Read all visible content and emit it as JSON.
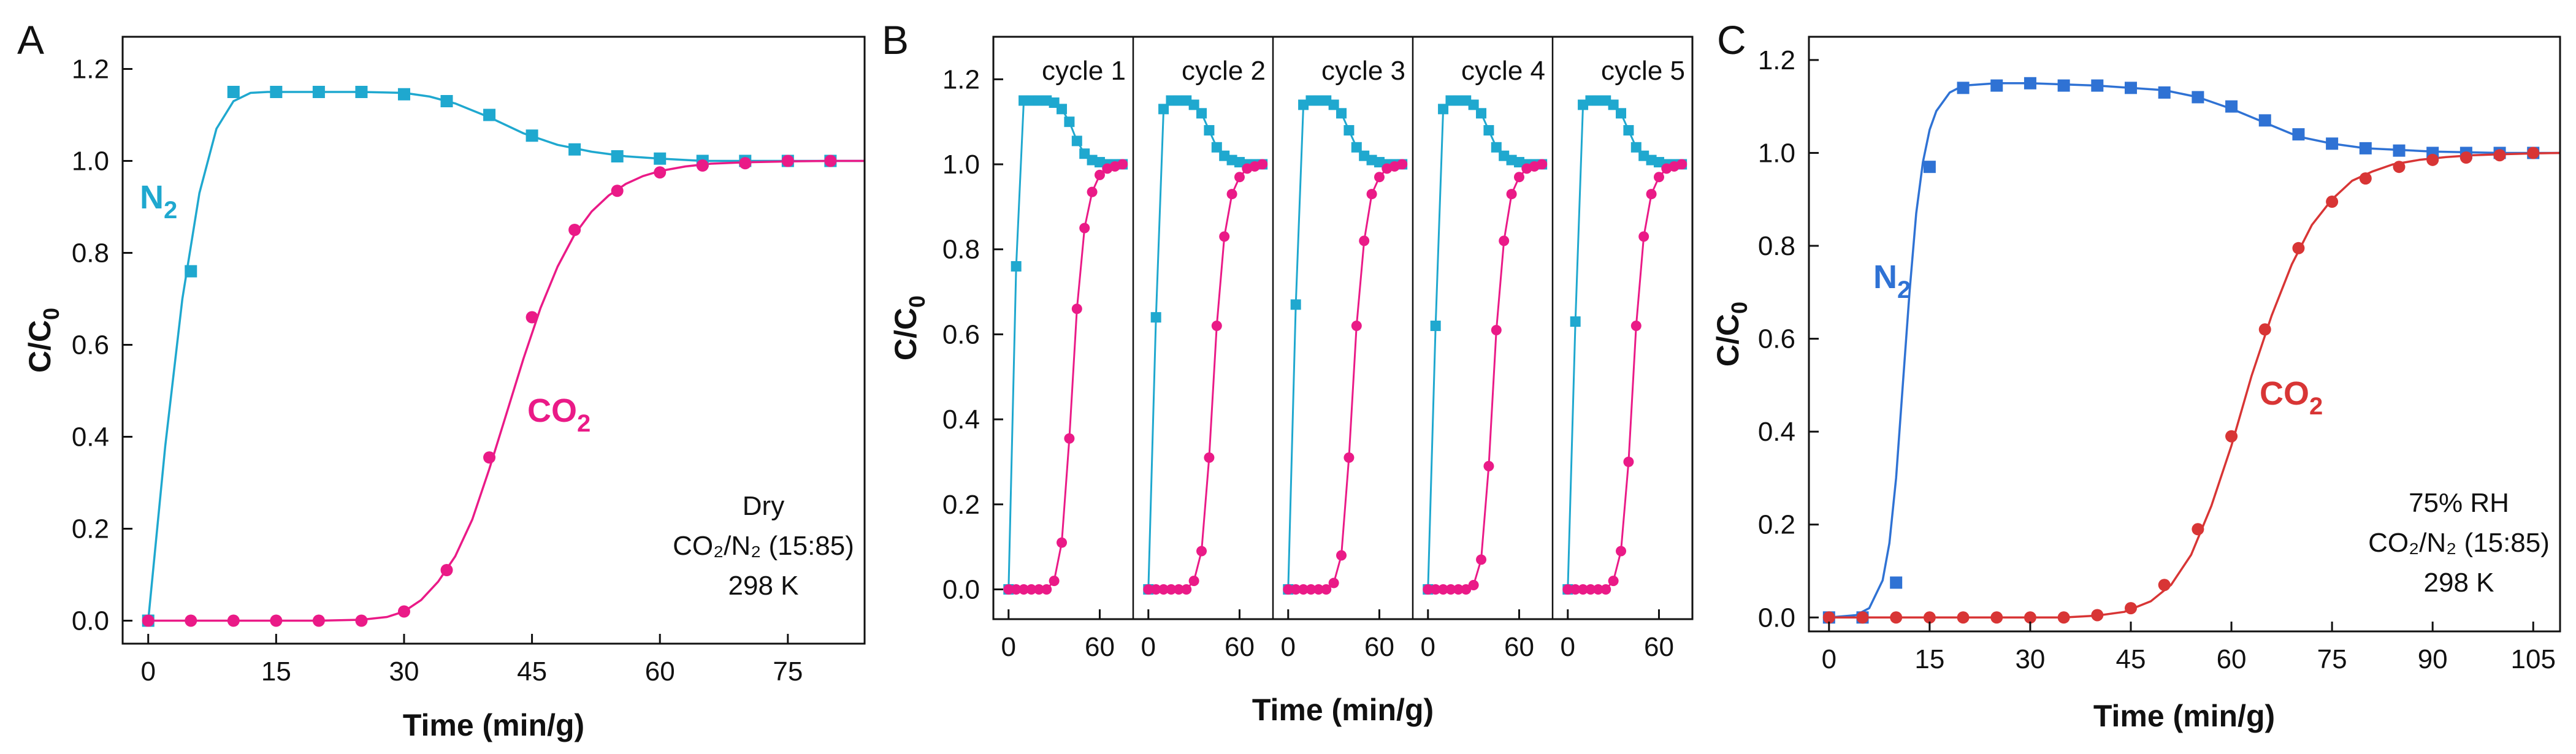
{
  "figure": {
    "colors": {
      "n2_A": "#1fa8cf",
      "co2_A": "#ea1a87",
      "n2_C": "#2f72d4",
      "co2_C": "#d83535"
    }
  },
  "chart_data": [
    {
      "id": "A",
      "type": "scatter",
      "panel_label": "A",
      "xlabel": "Time (min/g)",
      "ylabel_main": "C/C",
      "ylabel_sub": "0",
      "xlim": [
        -3,
        84
      ],
      "ylim": [
        -0.05,
        1.27
      ],
      "xticks": [
        0,
        15,
        30,
        45,
        60,
        75
      ],
      "yticks": [
        0.0,
        0.2,
        0.4,
        0.6,
        0.8,
        1.0,
        1.2
      ],
      "ytick_labels": [
        "0.0",
        "0.2",
        "0.4",
        "0.6",
        "0.8",
        "1.0",
        "1.2"
      ],
      "annotation": [
        "Dry",
        "CO₂/N₂ (15:85)",
        "298 K"
      ],
      "series": [
        {
          "name": "N₂",
          "name_main": "N",
          "name_sub": "2",
          "color": "#1fa8cf",
          "marker": "square",
          "x": [
            0,
            5,
            10,
            15,
            20,
            25,
            30,
            35,
            40,
            45,
            50,
            55,
            60,
            65,
            70,
            75,
            80
          ],
          "y": [
            0.0,
            0.76,
            1.15,
            1.15,
            1.15,
            1.15,
            1.145,
            1.13,
            1.1,
            1.055,
            1.025,
            1.01,
            1.005,
            1.0,
            1.0,
            1.0,
            1.0
          ],
          "fit_x": [
            0,
            2,
            4,
            6,
            8,
            10,
            12,
            14,
            16,
            20,
            25,
            30,
            33,
            36,
            40,
            44,
            48,
            52,
            56,
            60,
            65,
            70,
            75,
            80,
            84
          ],
          "fit_y": [
            0.0,
            0.38,
            0.7,
            0.93,
            1.07,
            1.13,
            1.148,
            1.15,
            1.15,
            1.15,
            1.15,
            1.148,
            1.14,
            1.125,
            1.095,
            1.06,
            1.035,
            1.02,
            1.01,
            1.005,
            1.0,
            1.0,
            1.0,
            1.0,
            1.0
          ]
        },
        {
          "name": "CO₂",
          "name_main": "CO",
          "name_sub": "2",
          "color": "#ea1a87",
          "marker": "circle",
          "x": [
            0,
            5,
            10,
            15,
            20,
            25,
            30,
            35,
            40,
            45,
            50,
            55,
            60,
            65,
            70,
            75,
            80
          ],
          "y": [
            0.0,
            0.0,
            0.0,
            0.0,
            0.0,
            0.0,
            0.02,
            0.11,
            0.355,
            0.66,
            0.85,
            0.935,
            0.975,
            0.99,
            0.995,
            1.0,
            1.0
          ],
          "fit_x": [
            0,
            10,
            20,
            25,
            28,
            30,
            32,
            34,
            36,
            38,
            40,
            42,
            44,
            46,
            48,
            50,
            52,
            54,
            56,
            58,
            60,
            63,
            66,
            70,
            75,
            80,
            84
          ],
          "fit_y": [
            0.0,
            0.0,
            0.0,
            0.002,
            0.008,
            0.02,
            0.045,
            0.085,
            0.14,
            0.22,
            0.33,
            0.45,
            0.57,
            0.68,
            0.77,
            0.84,
            0.89,
            0.925,
            0.95,
            0.967,
            0.978,
            0.988,
            0.994,
            0.997,
            0.999,
            1.0,
            1.0
          ]
        }
      ]
    },
    {
      "id": "B",
      "type": "scatter",
      "panel_label": "B",
      "xlabel": "Time (min/g)",
      "ylabel_main": "C/C",
      "ylabel_sub": "0",
      "xlim": [
        -10,
        82
      ],
      "ylim": [
        -0.07,
        1.3
      ],
      "xticks": [
        0,
        60
      ],
      "yticks": [
        0.0,
        0.2,
        0.4,
        0.6,
        0.8,
        1.0,
        1.2
      ],
      "ytick_labels": [
        "0.0",
        "0.2",
        "0.4",
        "0.6",
        "0.8",
        "1.0",
        "1.2"
      ],
      "cycles": [
        {
          "label": "cycle 1",
          "n2": {
            "x": [
              0,
              5,
              10,
              15,
              20,
              25,
              30,
              35,
              40,
              45,
              50,
              55,
              60,
              65,
              70,
              75
            ],
            "y": [
              0.0,
              0.76,
              1.15,
              1.15,
              1.15,
              1.15,
              1.145,
              1.13,
              1.1,
              1.055,
              1.025,
              1.01,
              1.005,
              1.0,
              1.0,
              1.0
            ]
          },
          "co2": {
            "x": [
              0,
              5,
              10,
              15,
              20,
              25,
              30,
              35,
              40,
              45,
              50,
              55,
              60,
              65,
              70,
              75
            ],
            "y": [
              0.0,
              0.0,
              0.0,
              0.0,
              0.0,
              0.0,
              0.02,
              0.11,
              0.355,
              0.66,
              0.85,
              0.935,
              0.975,
              0.99,
              0.995,
              1.0
            ]
          }
        },
        {
          "label": "cycle 2",
          "n2": {
            "x": [
              0,
              5,
              10,
              15,
              20,
              25,
              30,
              35,
              40,
              45,
              50,
              55,
              60,
              65,
              70,
              75
            ],
            "y": [
              0.0,
              0.64,
              1.13,
              1.15,
              1.15,
              1.15,
              1.14,
              1.12,
              1.08,
              1.04,
              1.02,
              1.01,
              1.005,
              1.0,
              1.0,
              1.0
            ]
          },
          "co2": {
            "x": [
              0,
              5,
              10,
              15,
              20,
              25,
              30,
              35,
              40,
              45,
              50,
              55,
              60,
              65,
              70,
              75
            ],
            "y": [
              0.0,
              0.0,
              0.0,
              0.0,
              0.0,
              0.0,
              0.02,
              0.09,
              0.31,
              0.62,
              0.83,
              0.93,
              0.97,
              0.99,
              0.995,
              1.0
            ]
          }
        },
        {
          "label": "cycle 3",
          "n2": {
            "x": [
              0,
              5,
              10,
              15,
              20,
              25,
              30,
              35,
              40,
              45,
              50,
              55,
              60,
              65,
              70,
              75
            ],
            "y": [
              0.0,
              0.67,
              1.14,
              1.15,
              1.15,
              1.15,
              1.14,
              1.12,
              1.08,
              1.04,
              1.02,
              1.01,
              1.005,
              1.0,
              1.0,
              1.0
            ]
          },
          "co2": {
            "x": [
              0,
              5,
              10,
              15,
              20,
              25,
              30,
              35,
              40,
              45,
              50,
              55,
              60,
              65,
              70,
              75
            ],
            "y": [
              0.0,
              0.0,
              0.0,
              0.0,
              0.0,
              0.0,
              0.015,
              0.08,
              0.31,
              0.62,
              0.82,
              0.93,
              0.97,
              0.99,
              0.995,
              1.0
            ]
          }
        },
        {
          "label": "cycle 4",
          "n2": {
            "x": [
              0,
              5,
              10,
              15,
              20,
              25,
              30,
              35,
              40,
              45,
              50,
              55,
              60,
              65,
              70,
              75
            ],
            "y": [
              0.0,
              0.62,
              1.13,
              1.15,
              1.15,
              1.15,
              1.14,
              1.12,
              1.08,
              1.04,
              1.02,
              1.01,
              1.005,
              1.0,
              1.0,
              1.0
            ]
          },
          "co2": {
            "x": [
              0,
              5,
              10,
              15,
              20,
              25,
              30,
              35,
              40,
              45,
              50,
              55,
              60,
              65,
              70,
              75
            ],
            "y": [
              0.0,
              0.0,
              0.0,
              0.0,
              0.0,
              0.0,
              0.01,
              0.07,
              0.29,
              0.61,
              0.82,
              0.93,
              0.97,
              0.99,
              0.995,
              1.0
            ]
          }
        },
        {
          "label": "cycle 5",
          "n2": {
            "x": [
              0,
              5,
              10,
              15,
              20,
              25,
              30,
              35,
              40,
              45,
              50,
              55,
              60,
              65,
              70,
              75
            ],
            "y": [
              0.0,
              0.63,
              1.14,
              1.15,
              1.15,
              1.15,
              1.14,
              1.12,
              1.08,
              1.04,
              1.02,
              1.01,
              1.005,
              1.0,
              1.0,
              1.0
            ]
          },
          "co2": {
            "x": [
              0,
              5,
              10,
              15,
              20,
              25,
              30,
              35,
              40,
              45,
              50,
              55,
              60,
              65,
              70,
              75
            ],
            "y": [
              0.0,
              0.0,
              0.0,
              0.0,
              0.0,
              0.0,
              0.02,
              0.09,
              0.3,
              0.62,
              0.83,
              0.93,
              0.97,
              0.99,
              0.995,
              1.0
            ]
          }
        }
      ]
    },
    {
      "id": "C",
      "type": "scatter",
      "panel_label": "C",
      "xlabel": "Time (min/g)",
      "ylabel_main": "C/C",
      "ylabel_sub": "0",
      "xlim": [
        -3,
        109
      ],
      "ylim": [
        -0.03,
        1.25
      ],
      "xticks": [
        0,
        15,
        30,
        45,
        60,
        75,
        90,
        105
      ],
      "yticks": [
        0.0,
        0.2,
        0.4,
        0.6,
        0.8,
        1.0,
        1.2
      ],
      "ytick_labels": [
        "0.0",
        "0.2",
        "0.4",
        "0.6",
        "0.8",
        "1.0",
        "1.2"
      ],
      "annotation": [
        "75% RH",
        "CO₂/N₂ (15:85)",
        "298 K"
      ],
      "series": [
        {
          "name": "N₂",
          "name_main": "N",
          "name_sub": "2",
          "color": "#2f72d4",
          "marker": "square",
          "x": [
            0,
            5,
            10,
            15,
            20,
            25,
            30,
            35,
            40,
            45,
            50,
            55,
            60,
            65,
            70,
            75,
            80,
            85,
            90,
            95,
            100,
            105
          ],
          "y": [
            0.0,
            0.0,
            0.075,
            0.97,
            1.14,
            1.145,
            1.15,
            1.145,
            1.145,
            1.14,
            1.13,
            1.12,
            1.1,
            1.07,
            1.04,
            1.02,
            1.01,
            1.005,
            1.0,
            1.0,
            1.0,
            1.0
          ],
          "fit_x": [
            0,
            4,
            6,
            8,
            9,
            10,
            11,
            12,
            13,
            14,
            15,
            16,
            18,
            20,
            25,
            30,
            40,
            50,
            55,
            60,
            65,
            70,
            75,
            80,
            90,
            100,
            109
          ],
          "fit_y": [
            0.0,
            0.005,
            0.02,
            0.08,
            0.16,
            0.3,
            0.5,
            0.7,
            0.87,
            0.98,
            1.05,
            1.09,
            1.13,
            1.145,
            1.15,
            1.15,
            1.145,
            1.135,
            1.12,
            1.095,
            1.065,
            1.035,
            1.02,
            1.01,
            1.003,
            1.0,
            1.0
          ]
        },
        {
          "name": "CO₂",
          "name_main": "CO",
          "name_sub": "2",
          "color": "#d83535",
          "marker": "circle",
          "x": [
            0,
            5,
            10,
            15,
            20,
            25,
            30,
            35,
            40,
            45,
            50,
            55,
            60,
            65,
            70,
            75,
            80,
            85,
            90,
            95,
            100,
            105
          ],
          "y": [
            0.0,
            0.0,
            0.0,
            0.0,
            0.0,
            0.0,
            0.0,
            0.0,
            0.005,
            0.02,
            0.07,
            0.19,
            0.39,
            0.62,
            0.795,
            0.895,
            0.945,
            0.97,
            0.985,
            0.99,
            0.995,
            1.0
          ],
          "fit_x": [
            0,
            20,
            35,
            40,
            44,
            48,
            51,
            54,
            57,
            60,
            63,
            66,
            69,
            72,
            75,
            78,
            81,
            84,
            88,
            92,
            96,
            100,
            105,
            109
          ],
          "fit_y": [
            0.0,
            0.0,
            0.0,
            0.004,
            0.012,
            0.035,
            0.07,
            0.135,
            0.24,
            0.37,
            0.52,
            0.65,
            0.76,
            0.845,
            0.9,
            0.94,
            0.96,
            0.975,
            0.985,
            0.991,
            0.995,
            0.997,
            0.999,
            1.0
          ]
        }
      ]
    }
  ]
}
